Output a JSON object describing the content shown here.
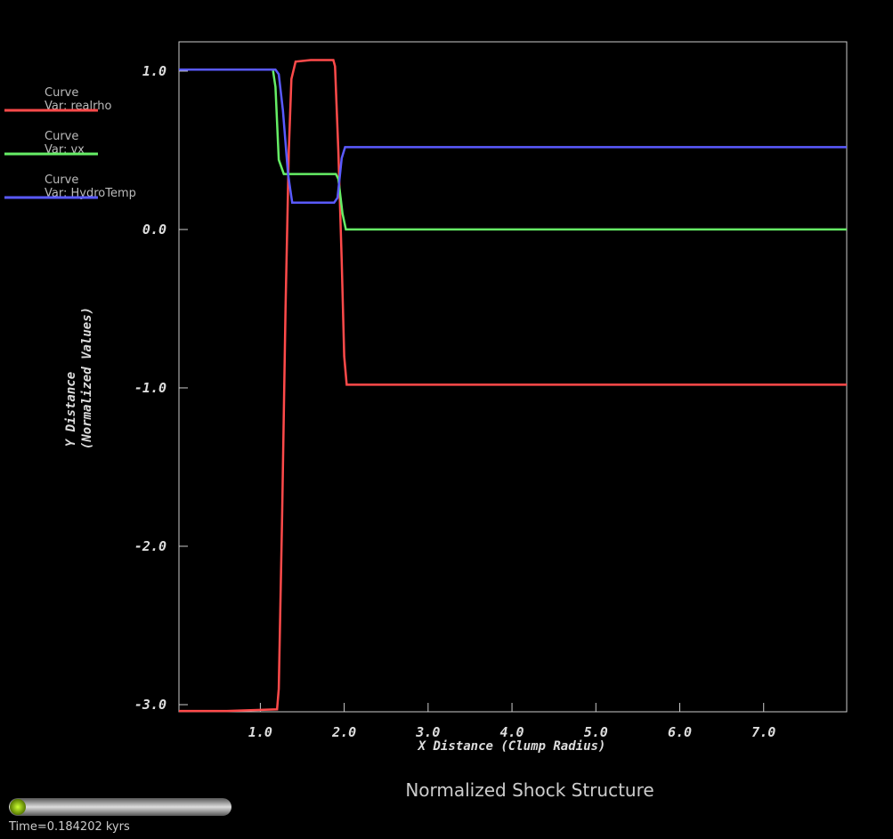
{
  "chart_data": {
    "type": "line",
    "title": "Normalized Shock Structure",
    "x_label": "X Distance (Clump Radius)",
    "y_label": [
      "Y Distance",
      "(Normalized Values)"
    ],
    "xlim": [
      0.03,
      7.99
    ],
    "ylim": [
      -3.045,
      1.185
    ],
    "xticks": [
      {
        "value": 1,
        "label": "1.0"
      },
      {
        "value": 2,
        "label": "2.0"
      },
      {
        "value": 3,
        "label": "3.0"
      },
      {
        "value": 4,
        "label": "4.0"
      },
      {
        "value": 5,
        "label": "5.0"
      },
      {
        "value": 6,
        "label": "6.0"
      },
      {
        "value": 7,
        "label": "7.0"
      }
    ],
    "yticks": [
      {
        "value": 1,
        "label": "1.0"
      },
      {
        "value": 0,
        "label": "0.0"
      },
      {
        "value": -1,
        "label": "-1.0"
      },
      {
        "value": -2,
        "label": "-2.0"
      },
      {
        "value": -3,
        "label": "-3.0"
      }
    ],
    "series": [
      {
        "legend_title": "Curve",
        "name": "Var: realrho",
        "color": "#ff4a4a",
        "x": [
          0.03,
          0.6,
          1.2,
          1.22,
          1.26,
          1.3,
          1.34,
          1.37,
          1.42,
          1.6,
          1.87,
          1.89,
          1.93,
          1.97,
          2.0,
          2.03,
          3,
          7.99
        ],
        "values": [
          -3.04,
          -3.04,
          -3.03,
          -2.9,
          -1.8,
          -0.5,
          0.5,
          0.95,
          1.06,
          1.07,
          1.07,
          1.03,
          0.5,
          -0.2,
          -0.8,
          -0.98,
          -0.98,
          -0.98
        ]
      },
      {
        "legend_title": "Curve",
        "name": "Var: vx",
        "color": "#66ee66",
        "x": [
          0.03,
          1.15,
          1.18,
          1.22,
          1.28,
          1.9,
          1.93,
          1.98,
          2.02,
          3,
          7.99
        ],
        "values": [
          1.01,
          1.01,
          0.9,
          0.44,
          0.35,
          0.35,
          0.32,
          0.1,
          0.0,
          0.0,
          0.0
        ]
      },
      {
        "legend_title": "Curve",
        "name": "Var: HydroTemp",
        "color": "#5a5aff",
        "x": [
          0.03,
          1.18,
          1.22,
          1.27,
          1.33,
          1.38,
          1.88,
          1.92,
          1.97,
          2.01,
          3,
          7.99
        ],
        "values": [
          1.01,
          1.01,
          0.98,
          0.75,
          0.35,
          0.17,
          0.17,
          0.2,
          0.45,
          0.52,
          0.52,
          0.52
        ]
      }
    ]
  },
  "time_label": "Time=0.184202 kyrs"
}
